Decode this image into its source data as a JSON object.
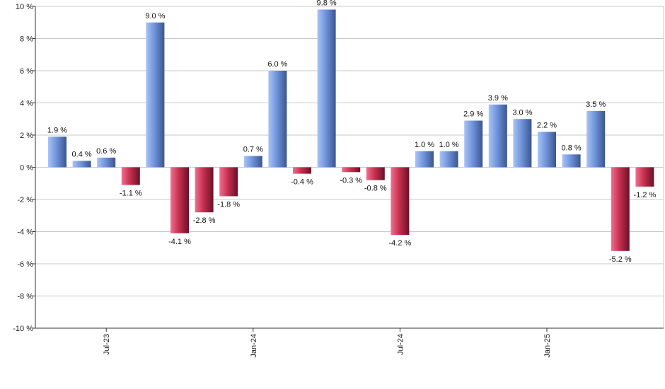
{
  "chart_data": {
    "type": "bar",
    "grid": true,
    "legend": "none",
    "ylim": [
      -10,
      10
    ],
    "y_ticks": [
      10,
      8,
      6,
      4,
      2,
      0,
      -2,
      -4,
      -6,
      -8,
      -10
    ],
    "y_tick_labels": [
      "10 %",
      "8 %",
      "6 %",
      "4 %",
      "2 %",
      "0 %",
      "-2 %",
      "-4 %",
      "-6 %",
      "-8 %",
      "-10 %"
    ],
    "x_tick_labels": [
      {
        "index": 2,
        "label": "Jul-23"
      },
      {
        "index": 8,
        "label": "Jan-24"
      },
      {
        "index": 14,
        "label": "Jul-24"
      },
      {
        "index": 20,
        "label": "Jan-25"
      }
    ],
    "values": [
      1.9,
      0.4,
      0.6,
      -1.1,
      9.0,
      -4.1,
      -2.8,
      -1.8,
      0.7,
      6.0,
      -0.4,
      9.8,
      -0.3,
      -0.8,
      -4.2,
      1.0,
      1.0,
      2.9,
      3.9,
      3.0,
      2.2,
      0.8,
      3.5,
      -5.2,
      -1.2
    ],
    "labels": [
      "1.9 %",
      "0.4 %",
      "0.6 %",
      "-1.1 %",
      "9.0 %",
      "-4.1 %",
      "-2.8 %",
      "-1.8 %",
      "0.7 %",
      "6.0 %",
      "-0.4 %",
      "9.8 %",
      "-0.3 %",
      "-0.8 %",
      "-4.2 %",
      "1.0 %",
      "1.0 %",
      "2.9 %",
      "3.9 %",
      "3.0 %",
      "2.2 %",
      "0.8 %",
      "3.5 %",
      "-5.2 %",
      "-1.2 %"
    ],
    "colors": {
      "positive_light": "#a9c4f5",
      "positive_mid": "#7094db",
      "positive_dark": "#3a5590",
      "negative_light": "#f07090",
      "negative_mid": "#c8304f",
      "negative_dark": "#6a1028",
      "grid": "#c8c8c8",
      "axis": "#333333"
    }
  }
}
